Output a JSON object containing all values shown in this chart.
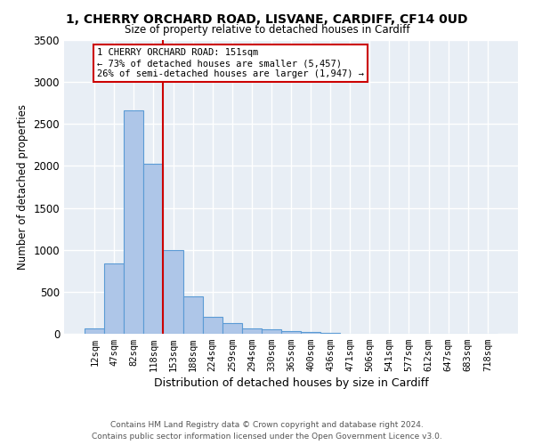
{
  "title_line1": "1, CHERRY ORCHARD ROAD, LISVANE, CARDIFF, CF14 0UD",
  "title_line2": "Size of property relative to detached houses in Cardiff",
  "xlabel": "Distribution of detached houses by size in Cardiff",
  "ylabel": "Number of detached properties",
  "bar_labels": [
    "12sqm",
    "47sqm",
    "82sqm",
    "118sqm",
    "153sqm",
    "188sqm",
    "224sqm",
    "259sqm",
    "294sqm",
    "330sqm",
    "365sqm",
    "400sqm",
    "436sqm",
    "471sqm",
    "506sqm",
    "541sqm",
    "577sqm",
    "612sqm",
    "647sqm",
    "683sqm",
    "718sqm"
  ],
  "bar_heights": [
    60,
    840,
    2660,
    2030,
    1000,
    450,
    200,
    130,
    65,
    55,
    30,
    20,
    15,
    0,
    0,
    0,
    0,
    0,
    0,
    0,
    0
  ],
  "bar_color": "#aec6e8",
  "bar_edgecolor": "#5b9bd5",
  "vline_color": "#cc0000",
  "annotation_line1": "1 CHERRY ORCHARD ROAD: 151sqm",
  "annotation_line2": "← 73% of detached houses are smaller (5,457)",
  "annotation_line3": "26% of semi-detached houses are larger (1,947) →",
  "annotation_box_color": "#cc0000",
  "ylim": [
    0,
    3500
  ],
  "yticks": [
    0,
    500,
    1000,
    1500,
    2000,
    2500,
    3000,
    3500
  ],
  "background_color": "#e8eef5",
  "footnote_line1": "Contains HM Land Registry data © Crown copyright and database right 2024.",
  "footnote_line2": "Contains public sector information licensed under the Open Government Licence v3.0."
}
